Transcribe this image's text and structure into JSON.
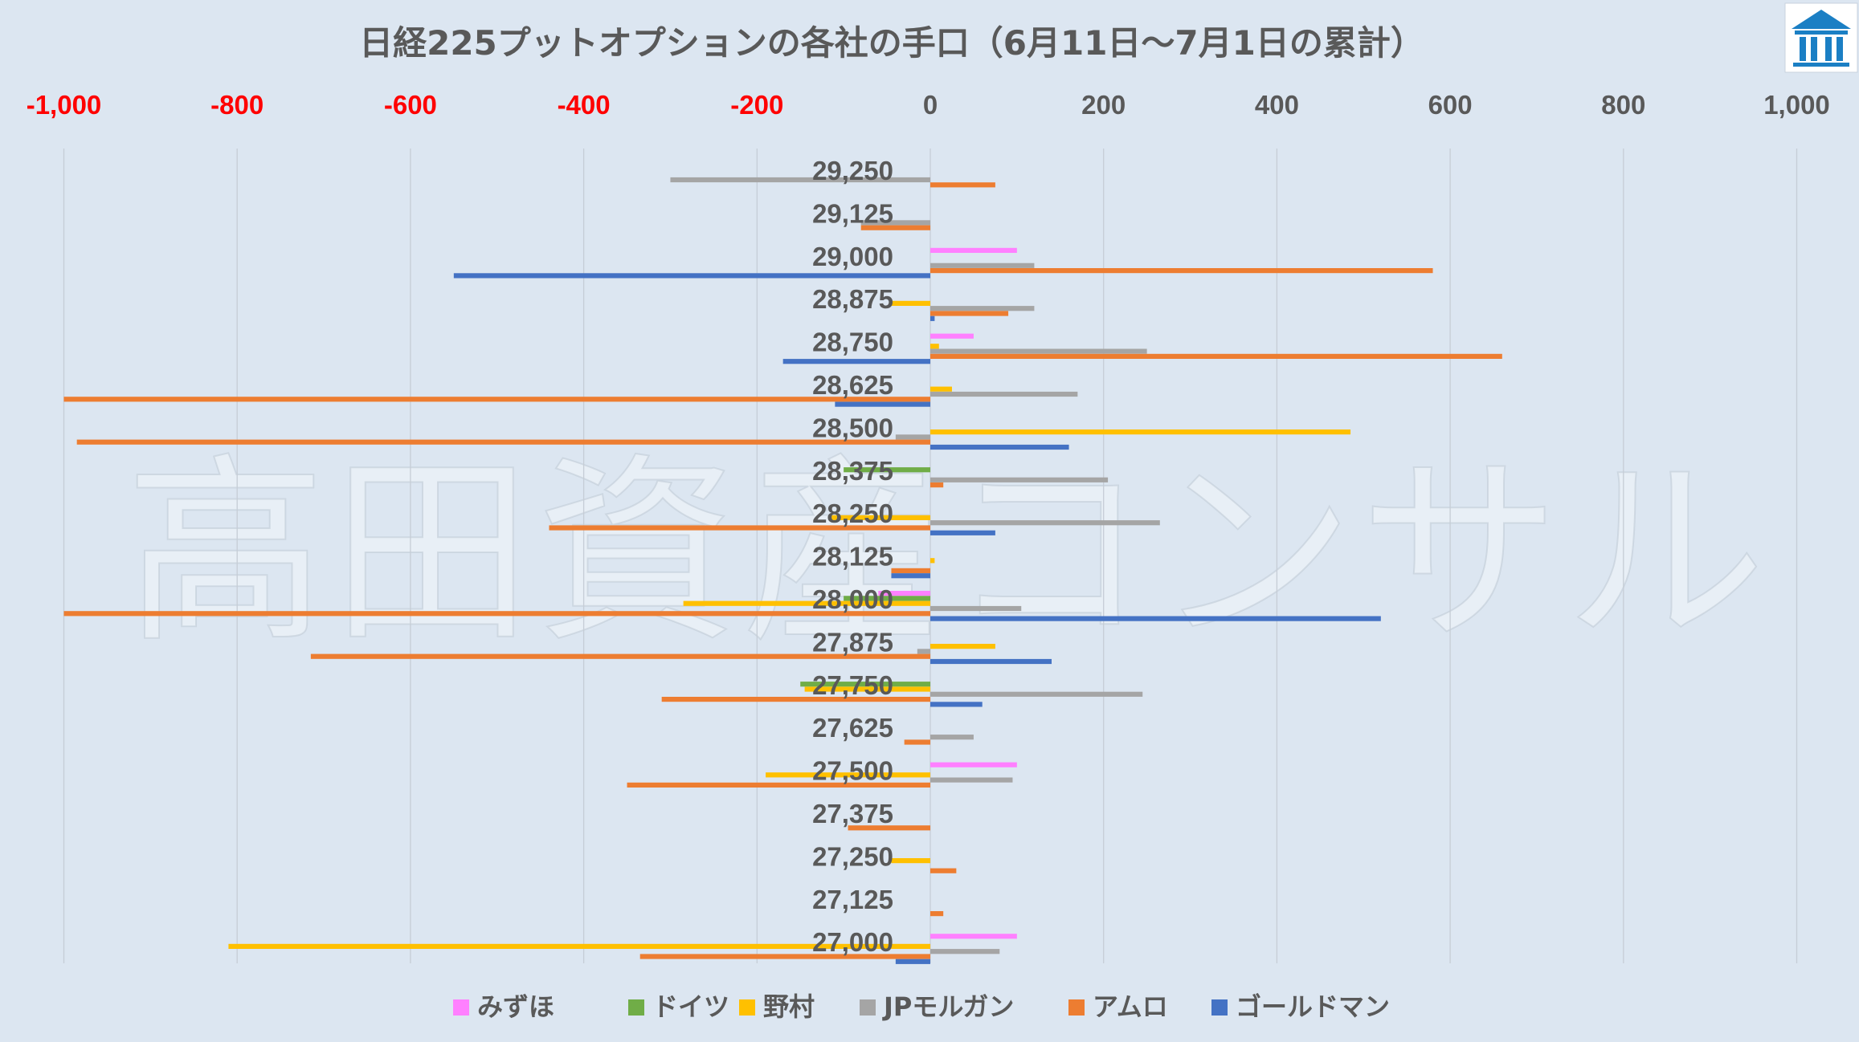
{
  "chart_data": {
    "type": "bar",
    "orientation": "horizontal",
    "title": "日経225プットオプションの各社の手口（6月11日〜7月1日の累計）",
    "xlim": [
      -1000,
      1000
    ],
    "x_ticks": [
      -1000,
      -800,
      -600,
      -400,
      -200,
      0,
      200,
      400,
      600,
      800,
      1000
    ],
    "x_tick_labels": [
      "-1,000",
      "-800",
      "-600",
      "-400",
      "-200",
      "0",
      "200",
      "400",
      "600",
      "800",
      "1,000"
    ],
    "negative_tick_color": "#ff0000",
    "positive_tick_color": "#595959",
    "grid": "vertical",
    "legend_position": "bottom",
    "watermark": "高田資産コンサル",
    "categories": [
      "29,250",
      "29,125",
      "29,000",
      "28,875",
      "28,750",
      "28,625",
      "28,500",
      "28,375",
      "28,250",
      "28,125",
      "28,000",
      "27,875",
      "27,750",
      "27,625",
      "27,500",
      "27,375",
      "27,250",
      "27,125",
      "27,000"
    ],
    "series": [
      {
        "name": "みずほ",
        "color": "#ff80ff",
        "values": [
          0,
          0,
          100,
          0,
          50,
          0,
          0,
          0,
          0,
          0,
          -60,
          0,
          0,
          0,
          100,
          0,
          0,
          0,
          100
        ]
      },
      {
        "name": "ドイツ",
        "color": "#70ad47",
        "values": [
          0,
          0,
          0,
          0,
          0,
          0,
          0,
          -100,
          0,
          0,
          -100,
          0,
          -150,
          0,
          0,
          0,
          0,
          0,
          0
        ]
      },
      {
        "name": "野村",
        "color": "#ffc000",
        "values": [
          0,
          0,
          0,
          -45,
          10,
          25,
          485,
          0,
          -115,
          5,
          -285,
          75,
          -145,
          0,
          -190,
          0,
          -45,
          0,
          -810
        ]
      },
      {
        "name": "JPモルガン",
        "color": "#a5a5a5",
        "values": [
          -300,
          -80,
          120,
          120,
          250,
          170,
          -40,
          205,
          265,
          0,
          105,
          -15,
          245,
          50,
          95,
          0,
          0,
          0,
          80
        ]
      },
      {
        "name": "アムロ",
        "color": "#ed7d31",
        "values": [
          75,
          -80,
          580,
          90,
          660,
          -1000,
          -985,
          15,
          -440,
          -45,
          -1000,
          -715,
          -310,
          -30,
          -350,
          -95,
          30,
          15,
          -335
        ]
      },
      {
        "name": "ゴールドマン",
        "color": "#4472c4",
        "values": [
          0,
          0,
          -550,
          5,
          -170,
          -110,
          160,
          0,
          75,
          -45,
          520,
          140,
          60,
          0,
          0,
          0,
          0,
          0,
          -40
        ]
      }
    ]
  },
  "logo": {
    "name": "site-logo"
  }
}
